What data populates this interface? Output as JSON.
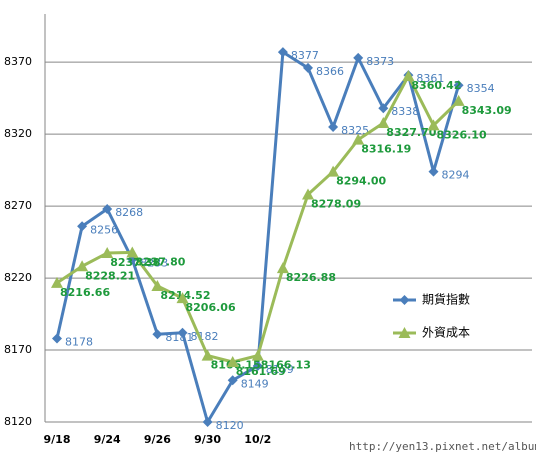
{
  "chart_data": {
    "type": "line",
    "categories": [
      "9/18",
      null,
      "9/24",
      null,
      "9/26",
      null,
      "9/30",
      null,
      "10/2",
      null,
      null,
      null,
      null,
      null,
      null,
      null,
      null
    ],
    "series": [
      {
        "name": "期貨指數",
        "color": "#4a7ebb",
        "marker": "diamond",
        "values": [
          8178,
          8256,
          8268,
          8233,
          8181,
          8182,
          8120,
          8149,
          8159,
          8377,
          8366,
          8325,
          8373,
          8338,
          8361,
          8294,
          8354
        ]
      },
      {
        "name": "外資成本",
        "color": "#9bbb59",
        "marker": "triangle",
        "values": [
          8216.66,
          8228.21,
          8237.38,
          8237.8,
          8214.52,
          8206.06,
          8166.15,
          8161.69,
          8166.13,
          8226.88,
          8278.09,
          8294,
          8316.19,
          8327.7,
          8360.42,
          8326.1,
          8343.09
        ],
        "value_labels": [
          "8216.66",
          "8228.21",
          "8237.38",
          "8237.80",
          "8214.52",
          "8206.06",
          "8166.15",
          "8161.69",
          "8166.13",
          "8226.88",
          "8278.09",
          "8294.00",
          "8316.19",
          "8327.70",
          "8360.42",
          "8326.10",
          "8343.09"
        ]
      }
    ],
    "ylim": [
      8120,
      8400
    ],
    "yticks": [
      8120,
      8170,
      8220,
      8270,
      8320,
      8370
    ],
    "grid": true,
    "legend": "right",
    "watermark": "http://yen13.pixnet.net/album"
  }
}
